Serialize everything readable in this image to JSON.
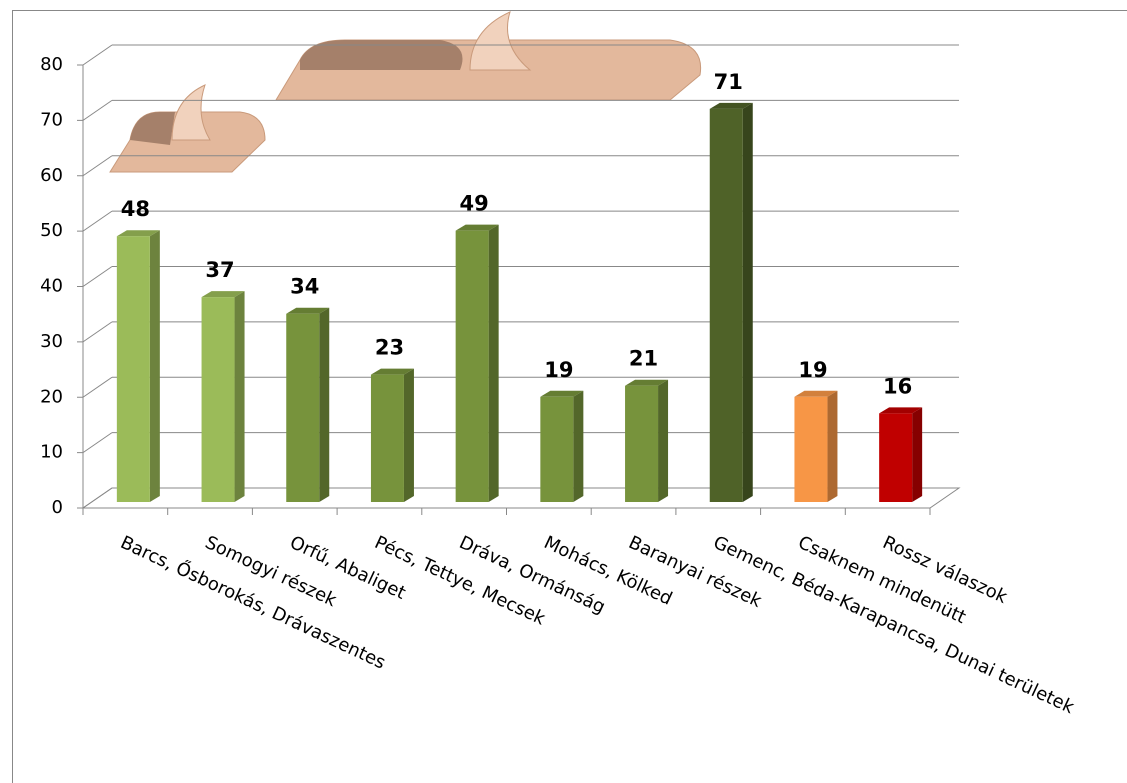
{
  "chart_data": {
    "type": "bar",
    "categories": [
      "Barcs, Ősborokás, Drávaszentes",
      "Somogyi részek",
      "Orfű, Abaliget",
      "Pécs, Tettye, Mecsek",
      "Dráva, Ormánság",
      "Mohács, Kölked",
      "Baranyai részek",
      "Gemenc, Béda-Karapancsa, Dunai területek",
      "Csaknem mindenütt",
      "Rossz válaszok"
    ],
    "values": [
      48,
      37,
      34,
      23,
      49,
      19,
      21,
      71,
      19,
      16
    ],
    "colors": [
      "#9bbb59",
      "#9bbb59",
      "#77933c",
      "#77933c",
      "#77933c",
      "#77933c",
      "#77933c",
      "#4f6228",
      "#f79646",
      "#c00000"
    ],
    "ylim": [
      0,
      80
    ],
    "yticks": [
      0,
      10,
      20,
      30,
      40,
      50,
      60,
      70,
      80
    ],
    "grid": true
  }
}
